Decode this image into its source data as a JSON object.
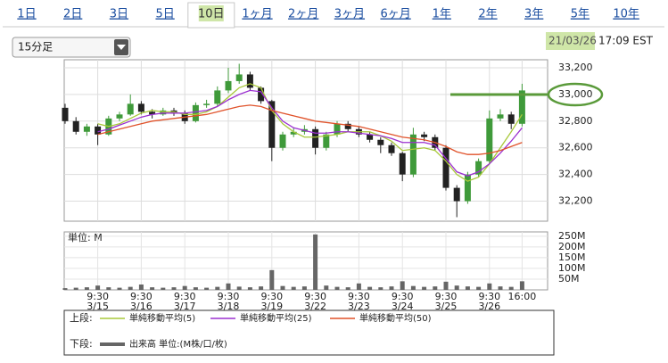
{
  "tabs": [
    "1日",
    "2日",
    "3日",
    "5日",
    "10日",
    "1ヶ月",
    "2ヶ月",
    "3ヶ月",
    "6ヶ月",
    "1年",
    "2年",
    "3年",
    "5年",
    "10年"
  ],
  "selected_tab": 4,
  "interval_select": "15分足",
  "date": "21/03/26",
  "time": "17:09 EST",
  "chart_data": {
    "type": "candlestick",
    "categories": [
      null,
      null,
      null,
      {
        "time": "9:30",
        "date": "3/15"
      },
      null,
      null,
      null,
      {
        "time": "9:30",
        "date": "3/16"
      },
      null,
      null,
      null,
      {
        "time": "9:30",
        "date": "3/17"
      },
      null,
      null,
      null,
      {
        "time": "9:30",
        "date": "3/18"
      },
      null,
      null,
      null,
      {
        "time": "9:30",
        "date": "3/19"
      },
      null,
      null,
      null,
      {
        "time": "9:30",
        "date": "3/22"
      },
      null,
      null,
      null,
      {
        "time": "9:30",
        "date": "3/23"
      },
      null,
      null,
      null,
      {
        "time": "9:30",
        "date": "3/24"
      },
      null,
      null,
      null,
      {
        "time": "9:30",
        "date": "3/25"
      },
      null,
      null,
      null,
      {
        "time": "9:30",
        "date": "3/26"
      },
      null,
      null,
      {
        "time": "16:00"
      }
    ],
    "open": [
      32900,
      32800,
      32720,
      32760,
      32700,
      32820,
      32850,
      32930,
      32870,
      32850,
      32880,
      32860,
      32800,
      32920,
      32930,
      33030,
      33100,
      33150,
      33050,
      32950,
      32600,
      32700,
      32720,
      32740,
      32600,
      32700,
      32780,
      32740,
      32700,
      32660,
      32620,
      32560,
      32400,
      32700,
      32680,
      32600,
      32300,
      32200,
      32400,
      32500,
      32820,
      32850,
      32780
    ],
    "high": [
      32930,
      32830,
      32780,
      32780,
      32840,
      32870,
      33000,
      32950,
      32890,
      32900,
      32900,
      32880,
      32940,
      32960,
      33060,
      33200,
      33230,
      33170,
      33060,
      32960,
      32720,
      32750,
      32770,
      32760,
      32720,
      32800,
      32800,
      32760,
      32720,
      32680,
      32640,
      32570,
      32750,
      32720,
      32700,
      32620,
      32320,
      32420,
      32520,
      32880,
      32890,
      32870,
      33080
    ],
    "low": [
      32780,
      32700,
      32690,
      32620,
      32690,
      32800,
      32840,
      32850,
      32820,
      32840,
      32840,
      32780,
      32790,
      32900,
      32910,
      33010,
      33080,
      33030,
      32930,
      32500,
      32580,
      32680,
      32700,
      32550,
      32580,
      32680,
      32720,
      32680,
      32640,
      32560,
      32540,
      32350,
      32380,
      32650,
      32580,
      32280,
      32080,
      32180,
      32380,
      32480,
      32800,
      32740,
      32760
    ],
    "close": [
      32800,
      32720,
      32760,
      32700,
      32820,
      32850,
      32930,
      32870,
      32850,
      32880,
      32860,
      32800,
      32920,
      32930,
      33030,
      33100,
      33150,
      33050,
      32950,
      32600,
      32700,
      32720,
      32740,
      32600,
      32700,
      32780,
      32740,
      32700,
      32660,
      32620,
      32560,
      32400,
      32700,
      32680,
      32600,
      32300,
      32200,
      32400,
      32500,
      32820,
      32850,
      32780,
      33030
    ],
    "up_color": "#3f9a3a",
    "down_color": "#222222",
    "ylim": [
      32050,
      33260
    ],
    "yticks": [
      {
        "value": 32200,
        "label": "32,200"
      },
      {
        "value": 32400,
        "label": "32,400"
      },
      {
        "value": 32600,
        "label": "32,600"
      },
      {
        "value": 32800,
        "label": "32,800"
      },
      {
        "value": 33000,
        "label": "33,000"
      },
      {
        "value": 33200,
        "label": "33,200"
      }
    ],
    "grid": true,
    "legend_upper": "上段:",
    "legend_lower": "下段:",
    "series": [
      {
        "name": "単純移動平均(5)",
        "color": "#a8c83a",
        "values": [
          null,
          null,
          null,
          32780,
          32760,
          32780,
          32820,
          32860,
          32880,
          32870,
          32870,
          32850,
          32850,
          32870,
          32910,
          32980,
          33050,
          33080,
          33050,
          32880,
          32780,
          32720,
          32680,
          32680,
          32690,
          32700,
          32720,
          32720,
          32720,
          32690,
          32650,
          32580,
          32590,
          32600,
          32580,
          32500,
          32400,
          32350,
          32380,
          32480,
          32600,
          32720,
          32850
        ]
      },
      {
        "name": "単純移動平均(25)",
        "color": "#9b30d0",
        "values": [
          null,
          null,
          null,
          32720,
          32740,
          32770,
          32800,
          32830,
          32850,
          32860,
          32860,
          32860,
          32870,
          32880,
          32910,
          32960,
          33000,
          33030,
          33020,
          32900,
          32800,
          32750,
          32730,
          32710,
          32710,
          32720,
          32720,
          32710,
          32700,
          32690,
          32670,
          32640,
          32640,
          32640,
          32620,
          32520,
          32420,
          32390,
          32420,
          32480,
          32560,
          32650,
          32750
        ]
      },
      {
        "name": "単純移動平均(50)",
        "color": "#e0522a",
        "values": [
          null,
          null,
          null,
          32700,
          32720,
          32740,
          32760,
          32780,
          32800,
          32810,
          32820,
          32830,
          32840,
          32850,
          32870,
          32890,
          32910,
          32920,
          32910,
          32880,
          32860,
          32840,
          32820,
          32800,
          32790,
          32780,
          32770,
          32760,
          32740,
          32720,
          32700,
          32680,
          32670,
          32660,
          32640,
          32610,
          32570,
          32550,
          32550,
          32560,
          32580,
          32610,
          32640
        ]
      }
    ],
    "volume": {
      "unit_label": "単位: M",
      "name": "出来高 単位:(M株/口/枚)",
      "color": "#666666",
      "values": [
        8,
        10,
        12,
        20,
        12,
        10,
        14,
        25,
        12,
        10,
        12,
        18,
        12,
        10,
        14,
        30,
        15,
        12,
        16,
        92,
        18,
        14,
        16,
        258,
        20,
        14,
        12,
        30,
        14,
        12,
        16,
        40,
        18,
        14,
        16,
        38,
        20,
        16,
        14,
        30,
        16,
        14,
        40
      ],
      "ylim": [
        0,
        270
      ],
      "yticks": [
        {
          "value": 50,
          "label": "50M"
        },
        {
          "value": 100,
          "label": "100M"
        },
        {
          "value": 150,
          "label": "150M"
        },
        {
          "value": 200,
          "label": "200M"
        },
        {
          "value": 250,
          "label": "250M"
        }
      ]
    }
  }
}
